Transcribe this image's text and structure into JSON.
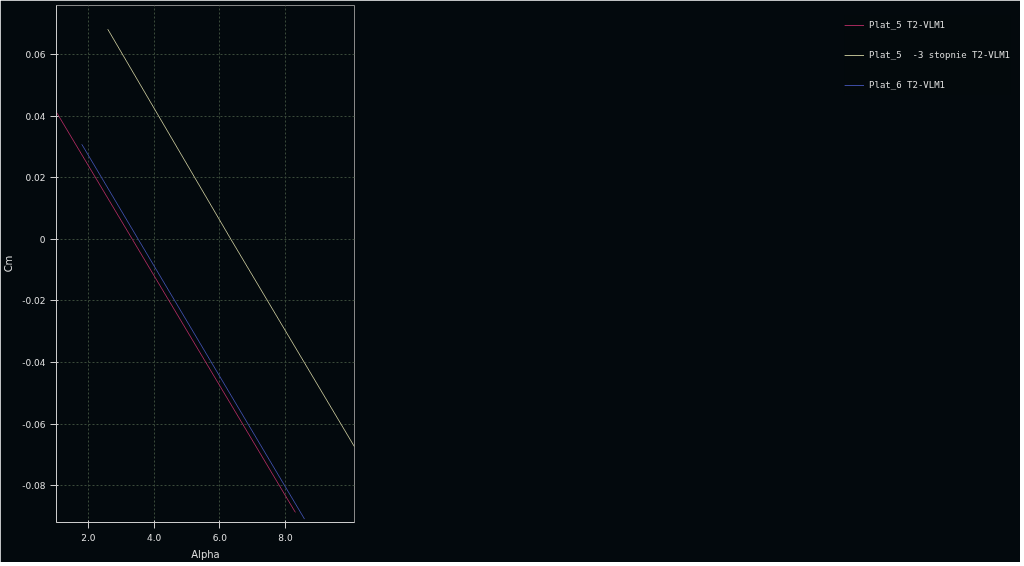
{
  "chart_data": {
    "type": "line",
    "xlabel": "Alpha",
    "ylabel": "Cm",
    "xlim": [
      1.03,
      10.1
    ],
    "ylim": [
      -0.092,
      0.076
    ],
    "xticks": [
      {
        "value": 2,
        "label": "2.0"
      },
      {
        "value": 4,
        "label": "4.0"
      },
      {
        "value": 6,
        "label": "6.0"
      },
      {
        "value": 8,
        "label": "8.0"
      }
    ],
    "yticks": [
      -0.08,
      -0.06,
      -0.04,
      -0.02,
      0,
      0.02,
      0.04,
      0.06
    ],
    "grid": true,
    "legend": "right",
    "marker": "none",
    "line_style": "solid",
    "series": [
      {
        "name": "Plat_5 T2-VLM1",
        "color": "#a0285a",
        "x": [
          1.03,
          3.34,
          8.3
        ],
        "values": [
          0.0413,
          0,
          -0.0887
        ]
      },
      {
        "name": "Plat_5  -3 stopnie T2-VLM1",
        "color": "#b4b48c",
        "x": [
          2.59,
          6.34,
          10.1
        ],
        "values": [
          0.0683,
          0,
          -0.0674
        ]
      },
      {
        "name": "Plat_6 T2-VLM1",
        "color": "#3c4ba0",
        "x": [
          1.8,
          3.52,
          8.58
        ],
        "values": [
          0.0309,
          0,
          -0.0909
        ]
      }
    ]
  }
}
